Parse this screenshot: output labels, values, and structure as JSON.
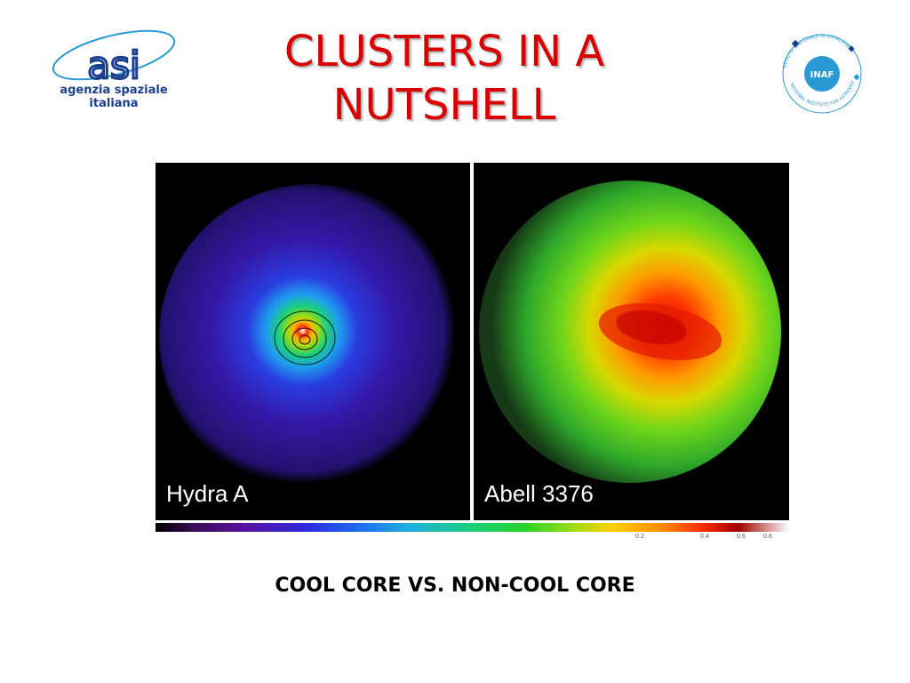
{
  "title": "CLUSTERS IN A NUTSHELL",
  "logos": {
    "asi": {
      "letters": "asi",
      "line1": "agenzia spaziale",
      "line2": "italiana"
    },
    "inaf": {
      "center": "INAF",
      "ring_top": "ISTITUTO NAZIONALE DI ASTROFISICA",
      "ring_bottom": "NATIONAL INSTITUTE FOR ASTROPHYSICS"
    }
  },
  "panels": [
    {
      "label": "Hydra A"
    },
    {
      "label": "Abell 3376"
    }
  ],
  "colorbar": {
    "ticks": [
      "0.2",
      "0.4",
      "0.6",
      "0.8"
    ]
  },
  "caption": "COOL CORE VS. NON-COOL CORE",
  "colors": {
    "title": "#d80000",
    "asi_blue": "#1a3f8f",
    "inaf_blue": "#2a9ad6"
  }
}
